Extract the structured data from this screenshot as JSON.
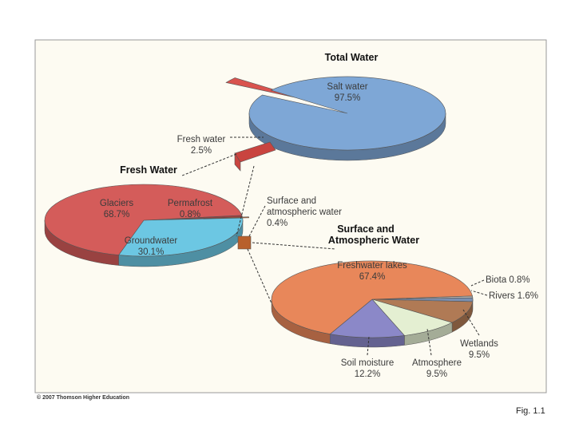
{
  "copyright": "© 2007 Thomson Higher Education",
  "caption": "Fig. 1.1",
  "chart_data": [
    {
      "type": "pie",
      "title": "Total Water",
      "slices": [
        {
          "label": "Salt water",
          "value": 97.5,
          "value_text": "97.5%",
          "color": "#7ea7d6"
        },
        {
          "label": "Fresh water",
          "value": 2.5,
          "value_text": "2.5%",
          "color": "#d9534e"
        }
      ]
    },
    {
      "type": "pie",
      "title": "Fresh Water",
      "slices": [
        {
          "label": "Glaciers",
          "value": 68.7,
          "value_text": "68.7%",
          "color": "#d45c5a"
        },
        {
          "label": "Permafrost",
          "value": 0.8,
          "value_text": "0.8%",
          "color": "#a83b3b"
        },
        {
          "label": "Groundwater",
          "value": 30.1,
          "value_text": "30.1%",
          "color": "#6cc7e3"
        },
        {
          "label": "Surface and atmospheric water",
          "value": 0.4,
          "value_text": "0.4%",
          "color": "#c8682e"
        }
      ]
    },
    {
      "type": "pie",
      "title": "Surface and Atmospheric Water",
      "slices": [
        {
          "label": "Freshwater lakes",
          "value": 67.4,
          "value_text": "67.4%",
          "color": "#e8875a"
        },
        {
          "label": "Biota",
          "value": 0.8,
          "value_text": "0.8%",
          "color": "#b0b0b0"
        },
        {
          "label": "Rivers",
          "value": 1.6,
          "value_text": "1.6%",
          "color": "#7a8fb0"
        },
        {
          "label": "Wetlands",
          "value": 9.5,
          "value_text": "9.5%",
          "color": "#b07a55"
        },
        {
          "label": "Atmosphere",
          "value": 9.5,
          "value_text": "9.5%",
          "color": "#e4efd2"
        },
        {
          "label": "Soil moisture",
          "value": 12.2,
          "value_text": "12.2%",
          "color": "#8b88c8"
        }
      ]
    }
  ]
}
